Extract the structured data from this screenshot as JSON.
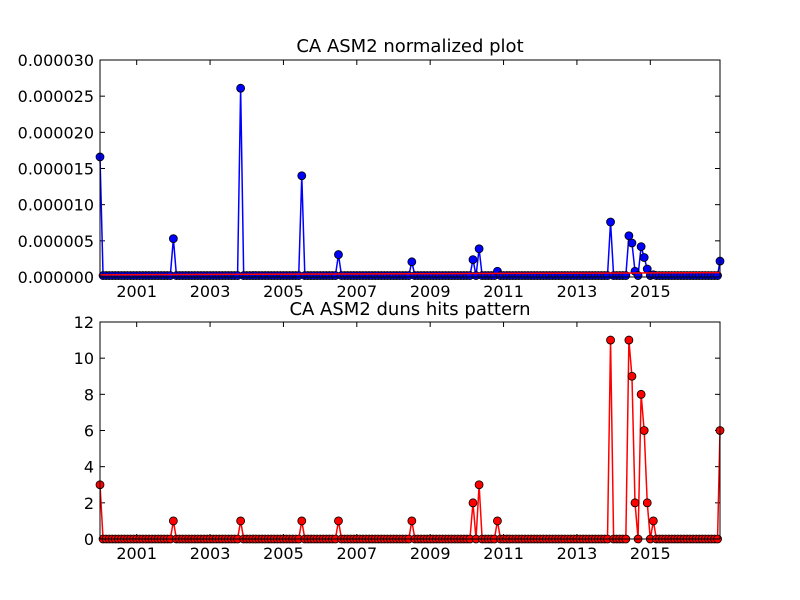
{
  "chart_data": [
    {
      "type": "line",
      "title": "CA ASM2 normalized plot",
      "xlabel": "",
      "ylabel": "",
      "xlim": [
        2000.0,
        2016.9
      ],
      "ylim": [
        0,
        3e-05
      ],
      "x_ticks": [
        "2001",
        "2003",
        "2005",
        "2007",
        "2009",
        "2011",
        "2013",
        "2015"
      ],
      "y_ticks": [
        "0.000000",
        "0.000005",
        "0.000010",
        "0.000015",
        "0.000020",
        "0.000025",
        "0.000030"
      ],
      "grid": false,
      "legend": "none",
      "series": [
        {
          "color": "#0000ff",
          "marker": "circle",
          "spikes": [
            {
              "x": 2000.0,
              "y": 1.66e-05
            },
            {
              "x": 2002.0,
              "y": 5.3e-06
            },
            {
              "x": 2003.8,
              "y": 2.61e-05
            },
            {
              "x": 2005.5,
              "y": 1.4e-05
            },
            {
              "x": 2006.5,
              "y": 3.1e-06
            },
            {
              "x": 2008.5,
              "y": 2.1e-06
            },
            {
              "x": 2010.2,
              "y": 2.4e-06
            },
            {
              "x": 2010.3,
              "y": 3.9e-06
            },
            {
              "x": 2010.8,
              "y": 8e-07
            },
            {
              "x": 2013.9,
              "y": 7.6e-06
            },
            {
              "x": 2014.4,
              "y": 5.7e-06
            },
            {
              "x": 2014.5,
              "y": 4.7e-06
            },
            {
              "x": 2014.6,
              "y": 8e-07
            },
            {
              "x": 2014.75,
              "y": 4.2e-06
            },
            {
              "x": 2014.85,
              "y": 2.7e-06
            },
            {
              "x": 2014.9,
              "y": 1.1e-06
            },
            {
              "x": 2015.05,
              "y": 3e-07
            },
            {
              "x": 2016.9,
              "y": 2.2e-06
            }
          ],
          "baseline": 2e-07
        },
        {
          "color": "#ff0000",
          "marker": "none",
          "description_values": [
            {
              "x": 2000.0,
              "y": 3e-07
            },
            {
              "x": 2016.9,
              "y": 6e-07
            }
          ]
        }
      ]
    },
    {
      "type": "line",
      "title": "CA ASM2 duns hits pattern",
      "xlabel": "",
      "ylabel": "",
      "xlim": [
        2000.0,
        2016.9
      ],
      "ylim": [
        0,
        12
      ],
      "x_ticks": [
        "2001",
        "2003",
        "2005",
        "2007",
        "2009",
        "2011",
        "2013",
        "2015"
      ],
      "y_ticks": [
        "0",
        "2",
        "4",
        "6",
        "8",
        "10",
        "12"
      ],
      "grid": false,
      "legend": "none",
      "series": [
        {
          "color": "#ff0000",
          "marker": "circle",
          "monthly_from": 2000.0,
          "spikes": [
            {
              "x": 2000.0,
              "y": 3
            },
            {
              "x": 2002.0,
              "y": 1
            },
            {
              "x": 2003.8,
              "y": 1
            },
            {
              "x": 2005.5,
              "y": 1
            },
            {
              "x": 2006.5,
              "y": 1
            },
            {
              "x": 2008.5,
              "y": 1
            },
            {
              "x": 2010.2,
              "y": 2
            },
            {
              "x": 2010.3,
              "y": 3
            },
            {
              "x": 2010.8,
              "y": 1
            },
            {
              "x": 2013.9,
              "y": 11
            },
            {
              "x": 2014.4,
              "y": 11
            },
            {
              "x": 2014.5,
              "y": 9
            },
            {
              "x": 2014.6,
              "y": 2
            },
            {
              "x": 2014.75,
              "y": 8
            },
            {
              "x": 2014.85,
              "y": 6
            },
            {
              "x": 2014.9,
              "y": 2
            },
            {
              "x": 2015.05,
              "y": 1
            },
            {
              "x": 2016.9,
              "y": 6
            }
          ]
        }
      ]
    }
  ]
}
